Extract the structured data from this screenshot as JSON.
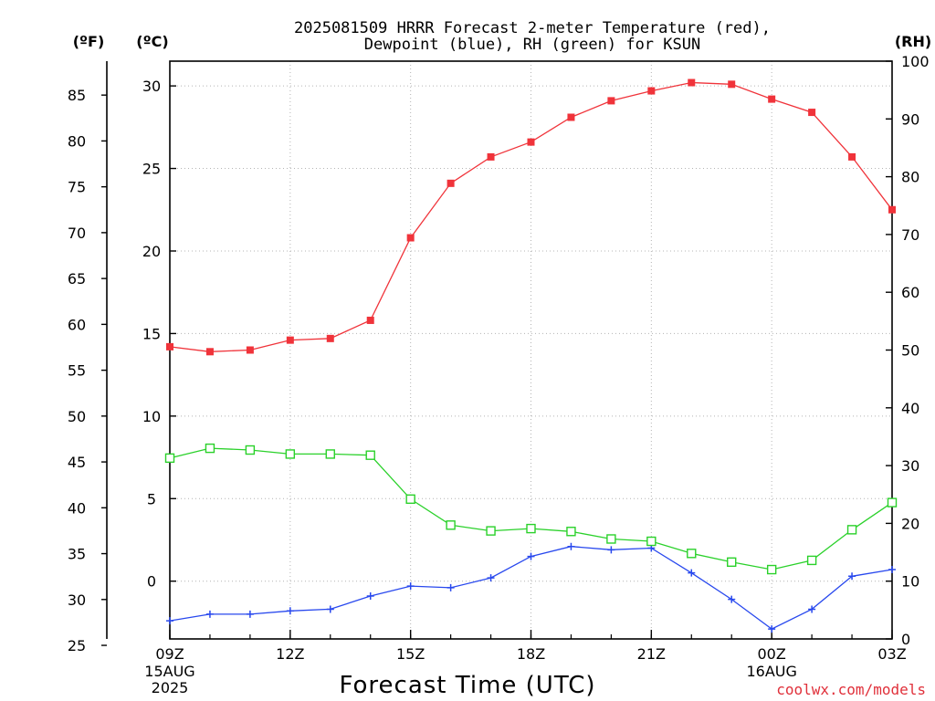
{
  "title_lines": [
    "2025081509 HRRR Forecast 2-meter Temperature (red),",
    "Dewpoint (blue), RH (green) for KSUN"
  ],
  "credit": "coolwx.com/models",
  "chart_data": {
    "type": "line",
    "title": "2025081509 HRRR Forecast 2-meter Temperature (red), Dewpoint (blue), RH (green) for KSUN",
    "xlabel": "Forecast Time (UTC)",
    "x": [
      "09Z",
      "10Z",
      "11Z",
      "12Z",
      "13Z",
      "14Z",
      "15Z",
      "16Z",
      "17Z",
      "18Z",
      "19Z",
      "20Z",
      "21Z",
      "22Z",
      "23Z",
      "00Z",
      "01Z",
      "02Z",
      "03Z"
    ],
    "x_ticks": [
      {
        "label": "09Z",
        "sub": [
          "15AUG",
          "2025"
        ]
      },
      {
        "label": "12Z",
        "sub": []
      },
      {
        "label": "15Z",
        "sub": []
      },
      {
        "label": "18Z",
        "sub": []
      },
      {
        "label": "21Z",
        "sub": []
      },
      {
        "label": "00Z",
        "sub": [
          "16AUG"
        ]
      },
      {
        "label": "03Z",
        "sub": []
      }
    ],
    "axes": {
      "celsius": {
        "label": "(ºC)",
        "range": [
          -3.5,
          31.5
        ],
        "ticks": [
          0,
          5,
          10,
          15,
          20,
          25,
          30
        ]
      },
      "fahrenheit": {
        "label": "(ºF)",
        "range": [
          25,
          88
        ],
        "ticks": [
          25,
          30,
          35,
          40,
          45,
          50,
          55,
          60,
          65,
          70,
          75,
          80,
          85
        ]
      },
      "rh": {
        "label": "(RH)",
        "range": [
          0,
          100
        ],
        "ticks": [
          0,
          10,
          20,
          30,
          40,
          50,
          60,
          70,
          80,
          90,
          100
        ]
      }
    },
    "grid": true,
    "series": [
      {
        "name": "Temperature",
        "axis": "celsius",
        "color": "#f0333a",
        "marker": "filled-square",
        "values": [
          14.2,
          13.9,
          14.0,
          14.6,
          14.7,
          15.8,
          20.8,
          24.1,
          25.7,
          26.6,
          28.1,
          29.1,
          29.7,
          30.2,
          30.1,
          29.2,
          28.4,
          25.7,
          22.5
        ]
      },
      {
        "name": "Dewpoint",
        "axis": "celsius",
        "color": "#2848ee",
        "marker": "plus",
        "values": [
          -2.4,
          -2.0,
          -2.0,
          -1.8,
          -1.7,
          -0.9,
          -0.3,
          -0.4,
          0.2,
          1.5,
          2.1,
          1.9,
          2.0,
          0.5,
          -1.1,
          -2.9,
          -1.7,
          0.3,
          0.7
        ]
      },
      {
        "name": "RH",
        "axis": "rh",
        "color": "#2ad12a",
        "marker": "open-square",
        "values": [
          31.3,
          33.0,
          32.7,
          32.0,
          32.0,
          31.8,
          24.2,
          19.7,
          18.7,
          19.1,
          18.6,
          17.3,
          16.9,
          14.8,
          13.3,
          12.0,
          13.6,
          18.9,
          23.6
        ]
      }
    ]
  }
}
